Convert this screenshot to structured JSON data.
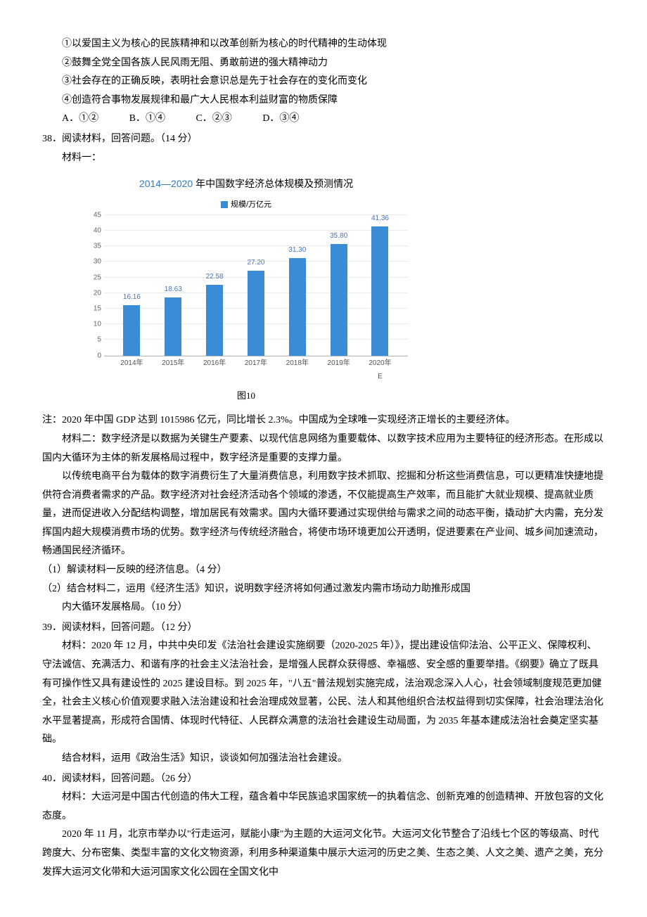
{
  "statements": {
    "s1": "①以爱国主义为核心的民族精神和以改革创新为核心的时代精神的生动体现",
    "s2": "②鼓舞全党全国各族人民风雨无阻、勇敢前进的强大精神动力",
    "s3": "③社会存在的正确反映，表明社会意识总是先于社会存在的变化而变化",
    "s4": "④创造符合事物发展规律和最广大人民根本利益财富的物质保障"
  },
  "options": {
    "a": "A．①②",
    "b": "B．①④",
    "c": "C．②③",
    "d": "D．③④"
  },
  "q38": {
    "head": "38．阅读材料，回答问题。（14 分）",
    "m1_label": "材料一：",
    "note": "注：2020 年中国 GDP 达到 1015986 亿元，同比增长 2.3%。中国成为全球唯一实现经济正增长的主要经济体。",
    "m2": "材料二：数字经济是以数据为关键生产要素、以现代信息网络为重要载体、以数字技术应用为主要特征的经济形态。在形成以国内大循环为主体的新发展格局过程中，数字经济是重要的支撑力量。",
    "m2b": "以传统电商平台为载体的数字消费衍生了大量消费信息，利用数字技术抓取、挖掘和分析这些消费信息，可以更精准快捷地提供符合消费者需求的产品。数字经济对社会经济活动各个领域的渗透，不仅能提高生产效率，而且能扩大就业规模、提高就业质量，进而促进收入分配结构调整，增加居民有效需求。国内大循环要通过实现供给与需求之间的动态平衡，撬动扩大内需，充分发挥国内超大规模消费市场的优势。数字经济与传统经济融合，将使市场环境更加公开透明，促进要素在产业间、城乡间加速流动，畅通国民经济循环。",
    "sub1": "（1）解读材料一反映的经济信息。（4 分）",
    "sub2a": "（2）结合材料二，运用《经济生活》知识，说明数字经济将如何通过激发内需市场动力助推形成国",
    "sub2b": "内大循环发展格局。（10 分）"
  },
  "q39": {
    "head": "39．阅读材料，回答问题。（12 分）",
    "body": "材料：2020 年 12 月，中共中央印发《法治社会建设实施纲要（2020-2025 年）》，提出建设信仰法治、公平正义、保障权利、守法诚信、充满活力、和谐有序的社会主义法治社会，是增强人民群众获得感、幸福感、安全感的重要举措。《纲要》确立了既具有可操作性又具有建设性的 2025 建设目标。到 2025 年，\"八五\"普法规划实施完成，法治观念深入人心，社会领域制度规范更加健全，社会主义核心价值观要求融入法治建设和社会治理成效显著，公民、法人和其他组织合法权益得到切实保障，社会治理法治化水平显著提高，形成符合国情、体现时代特征、人民群众满意的法治社会建设生动局面，为 2035 年基本建成法治社会奠定坚实基础。",
    "task": "结合材料，运用《政治生活》知识，谈谈如何加强法治社会建设。"
  },
  "q40": {
    "head": "40．阅读材料，回答问题。（26 分）",
    "p1": "材料：大运河是中国古代创造的伟大工程，蕴含着中华民族追求国家统一的执着信念、创新克难的创造精神、开放包容的文化态度。",
    "p2": "2020 年 11 月，北京市举办以\"行走运河，赋能小康\"为主题的大运河文化节。大运河文化节整合了沿线七个区的等级高、时代跨度大、分布密集、类型丰富的文化文物资源，利用多种渠道集中展示大运河的历史之美、生态之美、人文之美、遗产之美，充分发挥大运河文化带和大运河国家文化公园在全国文化中"
  },
  "chart": {
    "title_pre": "2014—2020",
    "title_post": " 年中国数字经济总体规模及预测情况",
    "legend": "规模/万亿元",
    "caption": "图10",
    "ymax": 45,
    "ytick_step": 5,
    "bar_color": "#3a8cd6",
    "grid_color": "#eaeaea",
    "categories": [
      "2014年",
      "2015年",
      "2016年",
      "2017年",
      "2018年",
      "2019年",
      "2020年E"
    ],
    "values": [
      16.16,
      18.63,
      22.58,
      27.2,
      31.3,
      35.8,
      41.36
    ]
  }
}
